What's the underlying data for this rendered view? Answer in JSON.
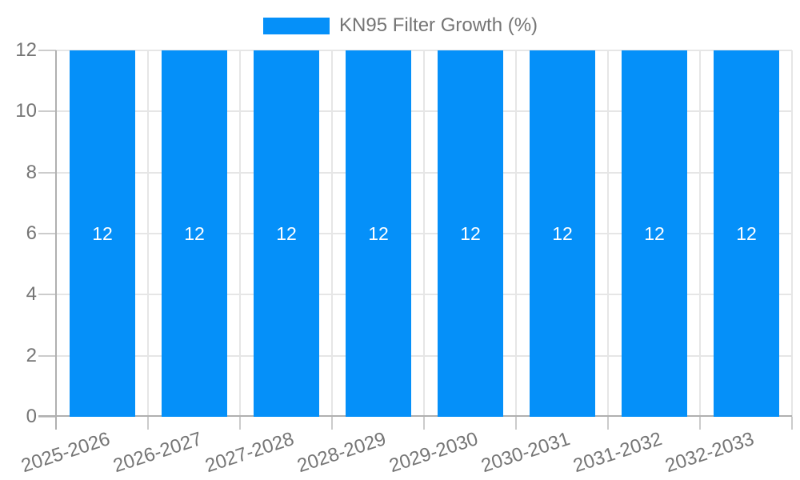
{
  "legend": {
    "label": "KN95 Filter Growth (%)"
  },
  "colors": {
    "bar": "#0590f9",
    "axis_text": "#757575",
    "bar_label_text": "#ffffff",
    "gridline": "#e6e6e6",
    "tick": "#cccccc",
    "axis_line": "#b0b0b0",
    "background": "#ffffff"
  },
  "chart_data": {
    "type": "bar",
    "title": "",
    "xlabel": "",
    "ylabel": "",
    "categories": [
      "2025-2026",
      "2026-2027",
      "2027-2028",
      "2028-2029",
      "2029-2030",
      "2030-2031",
      "2031-2032",
      "2032-2033"
    ],
    "series": [
      {
        "name": "KN95 Filter Growth (%)",
        "values": [
          12,
          12,
          12,
          12,
          12,
          12,
          12,
          12
        ]
      }
    ],
    "bar_value_labels": [
      "12",
      "12",
      "12",
      "12",
      "12",
      "12",
      "12",
      "12"
    ],
    "bar_label_position": "middle",
    "ylim": [
      0,
      12
    ],
    "yticks": [
      0,
      2,
      4,
      6,
      8,
      10,
      12
    ],
    "grid": true,
    "legend_position": "top-center",
    "x_tick_rotation_deg": -18
  }
}
